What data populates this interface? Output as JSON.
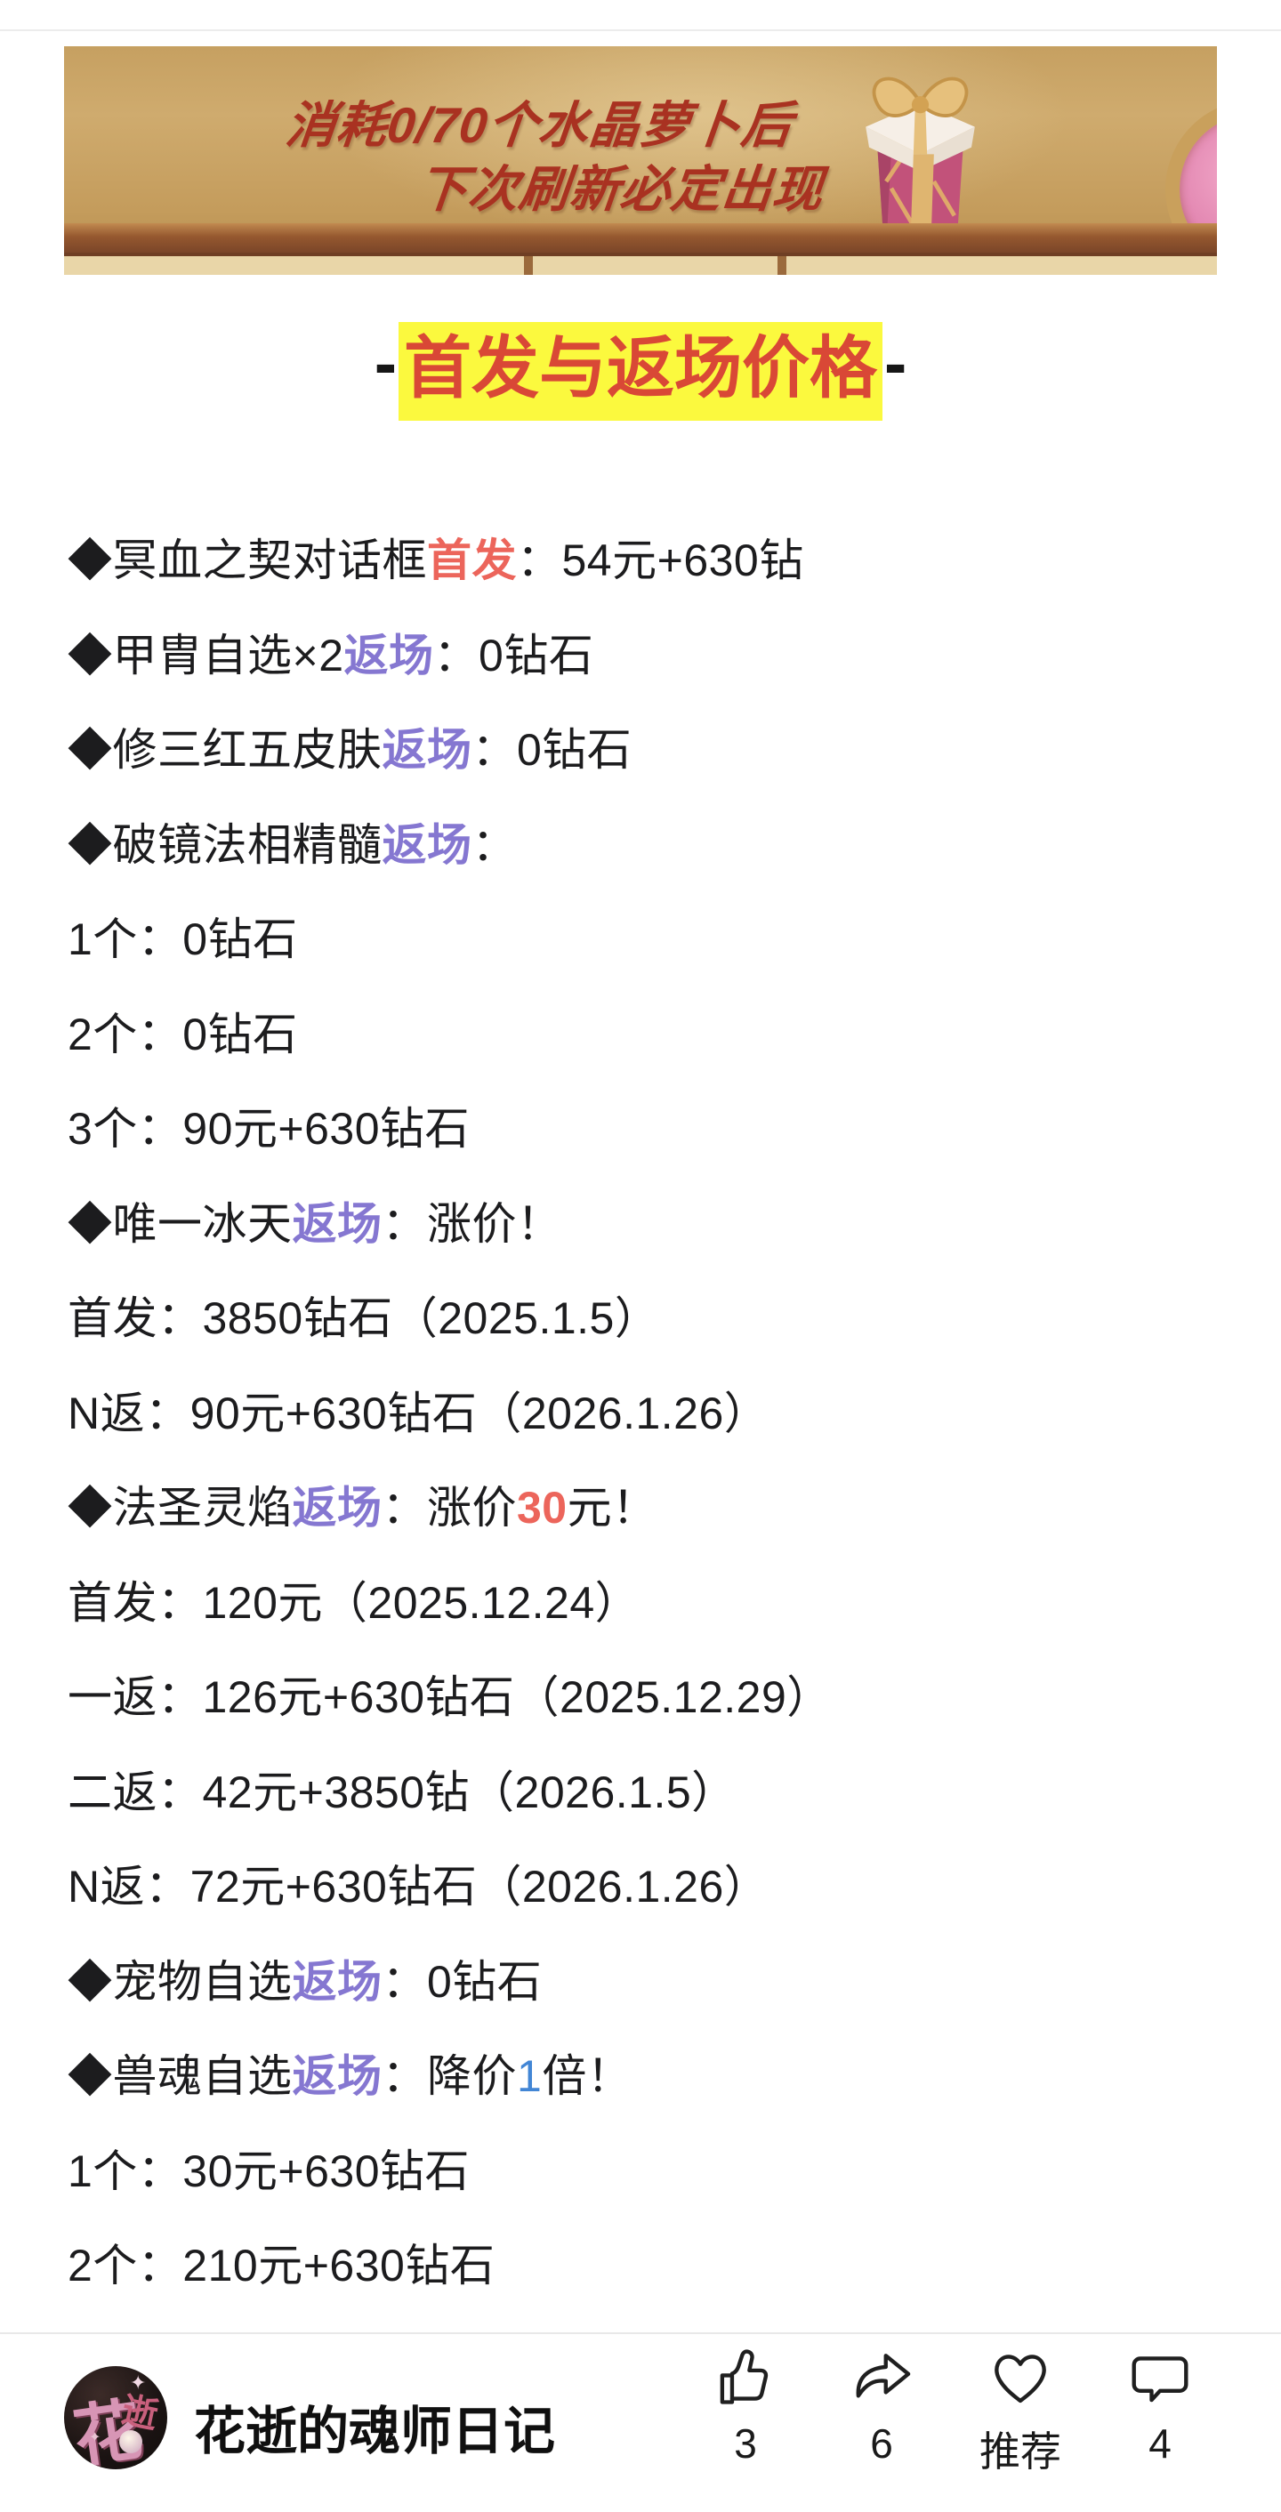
{
  "banner": {
    "text_line1": "消耗0/70个水晶萝卜后",
    "text_line2": "下次刷新必定出现",
    "gift_icon": "gift-box-icon"
  },
  "title": {
    "prefix": "-",
    "text": "首发与返场价格",
    "suffix": "-"
  },
  "content": {
    "lines": [
      [
        {
          "t": "◆冥血之契对话框",
          "c": "black"
        },
        {
          "t": "首发",
          "c": "red"
        },
        {
          "t": "：54元+630钻",
          "c": "black"
        }
      ],
      [
        {
          "t": "◆甲胄自选×2",
          "c": "black"
        },
        {
          "t": "返场",
          "c": "purple"
        },
        {
          "t": "：0钻石",
          "c": "black"
        }
      ],
      [
        {
          "t": "◆修三红五皮肤",
          "c": "black"
        },
        {
          "t": "返场",
          "c": "purple"
        },
        {
          "t": "：0钻石",
          "c": "black"
        }
      ],
      [
        {
          "t": "◆破镜法相精髓",
          "c": "black"
        },
        {
          "t": "返场",
          "c": "purple"
        },
        {
          "t": "：",
          "c": "black"
        }
      ],
      [
        {
          "t": "1个：0钻石",
          "c": "black"
        }
      ],
      [
        {
          "t": "2个：0钻石",
          "c": "black"
        }
      ],
      [
        {
          "t": "3个：90元+630钻石",
          "c": "black"
        }
      ],
      [
        {
          "t": "◆唯一冰天",
          "c": "black"
        },
        {
          "t": "返场",
          "c": "purple"
        },
        {
          "t": "：涨价！",
          "c": "black"
        }
      ],
      [
        {
          "t": "首发：3850钻石（2025.1.5）",
          "c": "black"
        }
      ],
      [
        {
          "t": "N返：90元+630钻石（2026.1.26）",
          "c": "black"
        }
      ],
      [
        {
          "t": "◆法圣灵焰",
          "c": "black"
        },
        {
          "t": "返场",
          "c": "purple"
        },
        {
          "t": "：涨价",
          "c": "black"
        },
        {
          "t": "30",
          "c": "red"
        },
        {
          "t": "元！",
          "c": "black"
        }
      ],
      [
        {
          "t": "首发：120元（2025.12.24）",
          "c": "black"
        }
      ],
      [
        {
          "t": "一返：126元+630钻石（2025.12.29）",
          "c": "black"
        }
      ],
      [
        {
          "t": "二返：42元+3850钻（2026.1.5）",
          "c": "black"
        }
      ],
      [
        {
          "t": "N返：72元+630钻石（2026.1.26）",
          "c": "black"
        }
      ],
      [
        {
          "t": "◆宠物自选",
          "c": "black"
        },
        {
          "t": "返场",
          "c": "purple"
        },
        {
          "t": "：0钻石",
          "c": "black"
        }
      ],
      [
        {
          "t": "◆兽魂自选",
          "c": "black"
        },
        {
          "t": "返场",
          "c": "purple"
        },
        {
          "t": "：降价",
          "c": "black"
        },
        {
          "t": "1",
          "c": "blue"
        },
        {
          "t": "倍！",
          "c": "black"
        }
      ],
      [
        {
          "t": "1个：30元+630钻石",
          "c": "black"
        }
      ],
      [
        {
          "t": "2个：210元+630钻石",
          "c": "black"
        }
      ]
    ]
  },
  "footer": {
    "author": "花逝的魂师日记",
    "avatar_text_primary": "花",
    "avatar_text_secondary": "逝",
    "actions": [
      {
        "icon": "thumbs-up-icon",
        "label": "3"
      },
      {
        "icon": "share-icon",
        "label": "6"
      },
      {
        "icon": "heart-icon",
        "label": "推荐"
      },
      {
        "icon": "comment-icon",
        "label": "4"
      }
    ]
  },
  "colors": {
    "accent_red": "#ec655b",
    "accent_purple": "#8577d1",
    "accent_blue": "#4286d5",
    "title_red": "#d94836",
    "title_highlight": "#fbf93e",
    "body_text": "#1c1c1e",
    "banner_text_red": "#a93221"
  }
}
